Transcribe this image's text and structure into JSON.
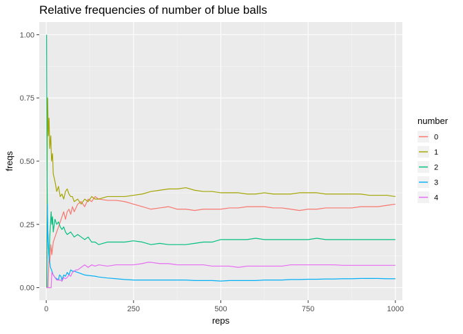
{
  "chart_data": {
    "type": "line",
    "title": "Relative frequencies of number of blue balls",
    "xlabel": "reps",
    "ylabel": "freqs",
    "xlim": [
      -20,
      1020
    ],
    "ylim": [
      -0.05,
      1.05
    ],
    "x_ticks": [
      0,
      250,
      500,
      750,
      1000
    ],
    "x_tick_labels": [
      "0",
      "250",
      "500",
      "750",
      "1000"
    ],
    "y_ticks": [
      0,
      0.25,
      0.5,
      0.75,
      1.0
    ],
    "y_tick_labels": [
      "0.00",
      "0.25",
      "0.50",
      "0.75",
      "1.00"
    ],
    "grid": true,
    "legend": {
      "title": "number",
      "placement": "right"
    },
    "series": [
      {
        "name": "0",
        "color": "#F8766D",
        "points": [
          [
            1,
            0
          ],
          [
            3,
            0
          ],
          [
            5,
            0
          ],
          [
            8,
            0.12
          ],
          [
            10,
            0.1
          ],
          [
            13,
            0.17
          ],
          [
            16,
            0.13
          ],
          [
            20,
            0.18
          ],
          [
            25,
            0.2
          ],
          [
            30,
            0.22
          ],
          [
            35,
            0.24
          ],
          [
            40,
            0.26
          ],
          [
            45,
            0.28
          ],
          [
            50,
            0.3
          ],
          [
            55,
            0.27
          ],
          [
            60,
            0.3
          ],
          [
            65,
            0.31
          ],
          [
            70,
            0.29
          ],
          [
            75,
            0.32
          ],
          [
            80,
            0.3
          ],
          [
            90,
            0.33
          ],
          [
            100,
            0.34
          ],
          [
            110,
            0.32
          ],
          [
            120,
            0.35
          ],
          [
            130,
            0.34
          ],
          [
            140,
            0.36
          ],
          [
            150,
            0.35
          ],
          [
            175,
            0.345
          ],
          [
            200,
            0.345
          ],
          [
            225,
            0.34
          ],
          [
            250,
            0.33
          ],
          [
            275,
            0.32
          ],
          [
            300,
            0.31
          ],
          [
            325,
            0.315
          ],
          [
            350,
            0.32
          ],
          [
            375,
            0.31
          ],
          [
            400,
            0.31
          ],
          [
            425,
            0.305
          ],
          [
            450,
            0.31
          ],
          [
            475,
            0.31
          ],
          [
            500,
            0.31
          ],
          [
            525,
            0.315
          ],
          [
            550,
            0.315
          ],
          [
            575,
            0.32
          ],
          [
            600,
            0.32
          ],
          [
            625,
            0.32
          ],
          [
            650,
            0.315
          ],
          [
            675,
            0.315
          ],
          [
            700,
            0.31
          ],
          [
            725,
            0.305
          ],
          [
            750,
            0.31
          ],
          [
            775,
            0.31
          ],
          [
            800,
            0.315
          ],
          [
            825,
            0.315
          ],
          [
            850,
            0.315
          ],
          [
            875,
            0.315
          ],
          [
            900,
            0.32
          ],
          [
            925,
            0.32
          ],
          [
            950,
            0.32
          ],
          [
            975,
            0.325
          ],
          [
            1000,
            0.33
          ]
        ]
      },
      {
        "name": "1",
        "color": "#A3A500",
        "points": [
          [
            1,
            0
          ],
          [
            3,
            0.6
          ],
          [
            4,
            0.75
          ],
          [
            6,
            0.6
          ],
          [
            8,
            0.67
          ],
          [
            10,
            0.55
          ],
          [
            13,
            0.6
          ],
          [
            15,
            0.5
          ],
          [
            18,
            0.53
          ],
          [
            20,
            0.45
          ],
          [
            25,
            0.42
          ],
          [
            30,
            0.38
          ],
          [
            35,
            0.4
          ],
          [
            40,
            0.36
          ],
          [
            45,
            0.37
          ],
          [
            50,
            0.35
          ],
          [
            55,
            0.38
          ],
          [
            60,
            0.39
          ],
          [
            65,
            0.37
          ],
          [
            70,
            0.36
          ],
          [
            75,
            0.36
          ],
          [
            80,
            0.34
          ],
          [
            90,
            0.35
          ],
          [
            100,
            0.33
          ],
          [
            110,
            0.35
          ],
          [
            120,
            0.34
          ],
          [
            130,
            0.36
          ],
          [
            140,
            0.35
          ],
          [
            150,
            0.35
          ],
          [
            175,
            0.36
          ],
          [
            200,
            0.36
          ],
          [
            225,
            0.36
          ],
          [
            250,
            0.365
          ],
          [
            275,
            0.37
          ],
          [
            300,
            0.38
          ],
          [
            325,
            0.385
          ],
          [
            350,
            0.39
          ],
          [
            375,
            0.39
          ],
          [
            400,
            0.395
          ],
          [
            425,
            0.385
          ],
          [
            450,
            0.38
          ],
          [
            475,
            0.38
          ],
          [
            500,
            0.375
          ],
          [
            525,
            0.375
          ],
          [
            550,
            0.375
          ],
          [
            575,
            0.37
          ],
          [
            600,
            0.37
          ],
          [
            625,
            0.375
          ],
          [
            650,
            0.37
          ],
          [
            675,
            0.37
          ],
          [
            700,
            0.37
          ],
          [
            725,
            0.375
          ],
          [
            750,
            0.375
          ],
          [
            775,
            0.375
          ],
          [
            800,
            0.37
          ],
          [
            825,
            0.37
          ],
          [
            850,
            0.37
          ],
          [
            875,
            0.37
          ],
          [
            900,
            0.37
          ],
          [
            925,
            0.365
          ],
          [
            950,
            0.365
          ],
          [
            975,
            0.365
          ],
          [
            1000,
            0.36
          ]
        ]
      },
      {
        "name": "2",
        "color": "#00BF7D",
        "points": [
          [
            1,
            1.0
          ],
          [
            2,
            0.5
          ],
          [
            3,
            0.33
          ],
          [
            4,
            0.25
          ],
          [
            5,
            0.2
          ],
          [
            6,
            0.17
          ],
          [
            8,
            0.12
          ],
          [
            10,
            0.2
          ],
          [
            12,
            0.25
          ],
          [
            14,
            0.3
          ],
          [
            16,
            0.25
          ],
          [
            18,
            0.28
          ],
          [
            20,
            0.22
          ],
          [
            25,
            0.27
          ],
          [
            30,
            0.25
          ],
          [
            35,
            0.26
          ],
          [
            40,
            0.24
          ],
          [
            45,
            0.23
          ],
          [
            50,
            0.24
          ],
          [
            55,
            0.22
          ],
          [
            60,
            0.21
          ],
          [
            70,
            0.22
          ],
          [
            80,
            0.2
          ],
          [
            90,
            0.21
          ],
          [
            100,
            0.2
          ],
          [
            110,
            0.19
          ],
          [
            120,
            0.2
          ],
          [
            130,
            0.18
          ],
          [
            140,
            0.18
          ],
          [
            150,
            0.17
          ],
          [
            175,
            0.18
          ],
          [
            200,
            0.18
          ],
          [
            225,
            0.18
          ],
          [
            250,
            0.185
          ],
          [
            275,
            0.18
          ],
          [
            300,
            0.17
          ],
          [
            325,
            0.175
          ],
          [
            350,
            0.17
          ],
          [
            375,
            0.17
          ],
          [
            400,
            0.17
          ],
          [
            425,
            0.175
          ],
          [
            450,
            0.18
          ],
          [
            475,
            0.18
          ],
          [
            500,
            0.19
          ],
          [
            525,
            0.19
          ],
          [
            550,
            0.19
          ],
          [
            575,
            0.19
          ],
          [
            600,
            0.195
          ],
          [
            625,
            0.19
          ],
          [
            650,
            0.19
          ],
          [
            675,
            0.19
          ],
          [
            700,
            0.19
          ],
          [
            725,
            0.19
          ],
          [
            750,
            0.19
          ],
          [
            775,
            0.195
          ],
          [
            800,
            0.19
          ],
          [
            825,
            0.19
          ],
          [
            850,
            0.19
          ],
          [
            875,
            0.19
          ],
          [
            900,
            0.19
          ],
          [
            925,
            0.19
          ],
          [
            950,
            0.19
          ],
          [
            975,
            0.19
          ],
          [
            1000,
            0.19
          ]
        ]
      },
      {
        "name": "3",
        "color": "#00B0F6",
        "points": [
          [
            1,
            0
          ],
          [
            2,
            0
          ],
          [
            3,
            0.33
          ],
          [
            4,
            0.25
          ],
          [
            5,
            0.2
          ],
          [
            6,
            0.17
          ],
          [
            7,
            0.14
          ],
          [
            8,
            0.12
          ],
          [
            10,
            0.1
          ],
          [
            12,
            0.08
          ],
          [
            15,
            0.07
          ],
          [
            20,
            0.05
          ],
          [
            25,
            0.04
          ],
          [
            30,
            0.035
          ],
          [
            35,
            0.03
          ],
          [
            38,
            0.05
          ],
          [
            42,
            0.045
          ],
          [
            45,
            0.03
          ],
          [
            50,
            0.05
          ],
          [
            55,
            0.045
          ],
          [
            60,
            0.06
          ],
          [
            65,
            0.05
          ],
          [
            70,
            0.07
          ],
          [
            75,
            0.065
          ],
          [
            80,
            0.065
          ],
          [
            90,
            0.06
          ],
          [
            100,
            0.055
          ],
          [
            110,
            0.05
          ],
          [
            120,
            0.048
          ],
          [
            140,
            0.045
          ],
          [
            150,
            0.042
          ],
          [
            175,
            0.038
          ],
          [
            200,
            0.035
          ],
          [
            225,
            0.032
          ],
          [
            250,
            0.03
          ],
          [
            275,
            0.03
          ],
          [
            300,
            0.03
          ],
          [
            325,
            0.03
          ],
          [
            350,
            0.03
          ],
          [
            375,
            0.03
          ],
          [
            400,
            0.03
          ],
          [
            425,
            0.028
          ],
          [
            450,
            0.028
          ],
          [
            475,
            0.028
          ],
          [
            500,
            0.026
          ],
          [
            525,
            0.028
          ],
          [
            550,
            0.028
          ],
          [
            575,
            0.028
          ],
          [
            600,
            0.028
          ],
          [
            625,
            0.03
          ],
          [
            650,
            0.03
          ],
          [
            675,
            0.03
          ],
          [
            700,
            0.032
          ],
          [
            725,
            0.032
          ],
          [
            750,
            0.033
          ],
          [
            775,
            0.033
          ],
          [
            800,
            0.034
          ],
          [
            825,
            0.034
          ],
          [
            850,
            0.035
          ],
          [
            875,
            0.035
          ],
          [
            900,
            0.036
          ],
          [
            925,
            0.036
          ],
          [
            950,
            0.036
          ],
          [
            975,
            0.035
          ],
          [
            1000,
            0.035
          ]
        ]
      },
      {
        "name": "4",
        "color": "#E76BF3",
        "points": [
          [
            1,
            0
          ],
          [
            10,
            0
          ],
          [
            14,
            0
          ],
          [
            16,
            0.06
          ],
          [
            20,
            0.05
          ],
          [
            25,
            0.04
          ],
          [
            30,
            0.03
          ],
          [
            35,
            0.03
          ],
          [
            40,
            0.03
          ],
          [
            45,
            0.025
          ],
          [
            50,
            0.04
          ],
          [
            55,
            0.035
          ],
          [
            60,
            0.04
          ],
          [
            65,
            0.05
          ],
          [
            70,
            0.045
          ],
          [
            75,
            0.06
          ],
          [
            80,
            0.065
          ],
          [
            85,
            0.07
          ],
          [
            90,
            0.07
          ],
          [
            100,
            0.08
          ],
          [
            110,
            0.09
          ],
          [
            120,
            0.08
          ],
          [
            130,
            0.09
          ],
          [
            140,
            0.085
          ],
          [
            150,
            0.09
          ],
          [
            175,
            0.085
          ],
          [
            200,
            0.09
          ],
          [
            225,
            0.09
          ],
          [
            250,
            0.09
          ],
          [
            275,
            0.095
          ],
          [
            290,
            0.1
          ],
          [
            300,
            0.1
          ],
          [
            325,
            0.095
          ],
          [
            350,
            0.095
          ],
          [
            375,
            0.09
          ],
          [
            400,
            0.09
          ],
          [
            425,
            0.09
          ],
          [
            450,
            0.09
          ],
          [
            475,
            0.085
          ],
          [
            500,
            0.085
          ],
          [
            525,
            0.085
          ],
          [
            550,
            0.08
          ],
          [
            575,
            0.085
          ],
          [
            600,
            0.085
          ],
          [
            625,
            0.085
          ],
          [
            650,
            0.085
          ],
          [
            675,
            0.085
          ],
          [
            700,
            0.09
          ],
          [
            725,
            0.09
          ],
          [
            750,
            0.09
          ],
          [
            775,
            0.09
          ],
          [
            800,
            0.09
          ],
          [
            825,
            0.09
          ],
          [
            850,
            0.088
          ],
          [
            875,
            0.088
          ],
          [
            900,
            0.088
          ],
          [
            925,
            0.088
          ],
          [
            950,
            0.088
          ],
          [
            975,
            0.088
          ],
          [
            1000,
            0.088
          ]
        ]
      }
    ]
  }
}
